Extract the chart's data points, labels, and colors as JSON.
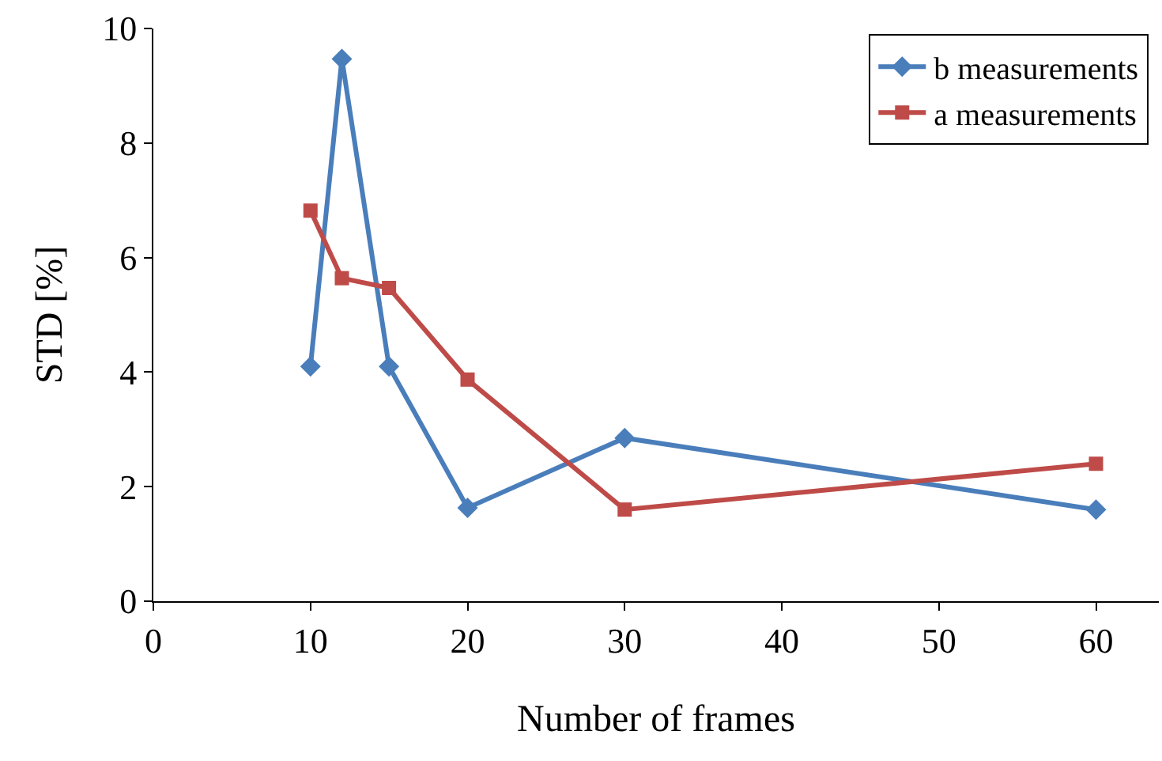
{
  "chart_data": {
    "type": "line",
    "xlabel": "Number of frames",
    "ylabel": "STD [%]",
    "x": [
      10,
      12,
      15,
      20,
      30,
      60
    ],
    "series": [
      {
        "name": "b measurements",
        "color": "#4a7ebb",
        "marker": "diamond",
        "values": [
          4.1,
          9.47,
          4.1,
          1.63,
          2.85,
          1.6
        ]
      },
      {
        "name": "a measurements",
        "color": "#be4b48",
        "marker": "square",
        "values": [
          6.82,
          5.64,
          5.47,
          3.87,
          1.6,
          2.4
        ]
      }
    ],
    "xlim": [
      0,
      64
    ],
    "xticks": [
      0,
      10,
      20,
      30,
      40,
      50,
      60
    ],
    "ylim": [
      0,
      10
    ],
    "yticks": [
      0,
      2,
      4,
      6,
      8,
      10
    ],
    "grid": false,
    "legend": "top right",
    "line_style": "solid"
  }
}
